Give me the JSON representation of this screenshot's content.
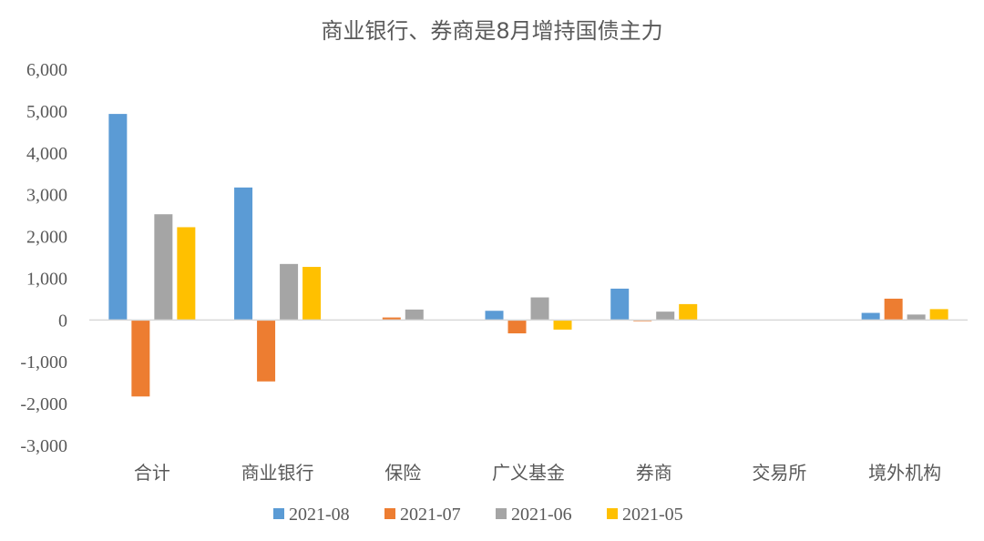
{
  "chart_data": {
    "type": "bar",
    "title": "商业银行、券商是8月增持国债主力",
    "categories": [
      "合计",
      "商业银行",
      "保险",
      "广义基金",
      "券商",
      "交易所",
      "境外机构"
    ],
    "series": [
      {
        "name": "2021-08",
        "color": "#5B9BD5",
        "values": [
          4930,
          3170,
          0,
          220,
          750,
          0,
          170
        ]
      },
      {
        "name": "2021-07",
        "color": "#ED7D31",
        "values": [
          -1830,
          -1470,
          60,
          -320,
          -30,
          0,
          510
        ]
      },
      {
        "name": "2021-06",
        "color": "#A5A5A5",
        "values": [
          2530,
          1340,
          250,
          540,
          200,
          0,
          130
        ]
      },
      {
        "name": "2021-05",
        "color": "#FFC000",
        "values": [
          2220,
          1270,
          0,
          -230,
          380,
          0,
          260
        ]
      }
    ],
    "yticks": [
      "6,000",
      "5,000",
      "4,000",
      "3,000",
      "2,000",
      "1,000",
      "0",
      "-1,000",
      "-2,000",
      "-3,000"
    ],
    "ylim": [
      -3000,
      6000
    ],
    "xlabel": "",
    "ylabel": "",
    "legend_position": "bottom",
    "grid": false
  }
}
